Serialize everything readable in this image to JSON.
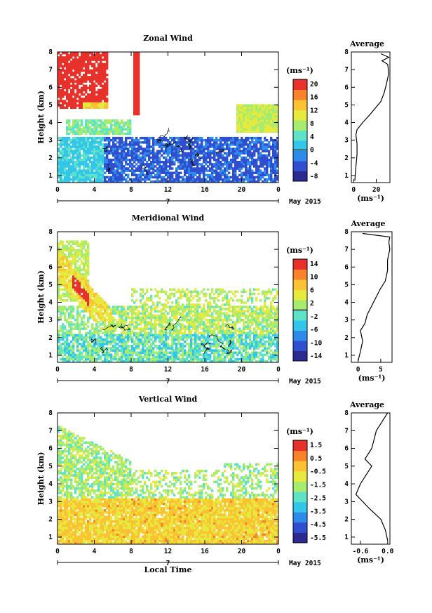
{
  "figure": {
    "ylabel": "Height (km)",
    "date_label": "May 2015",
    "local_time_label": "Local Time",
    "day_label": "7",
    "avg_title": "Average",
    "unit_label": "(ms⁻¹)"
  },
  "chart_data": [
    {
      "type": "heatmap",
      "title": "Zonal Wind",
      "xlabel": "",
      "ylabel": "Height (km)",
      "x_ticks": [
        "0",
        "4",
        "8",
        "12",
        "16",
        "20",
        "0"
      ],
      "xlim": [
        0,
        24
      ],
      "y_ticks": [
        "1",
        "2",
        "3",
        "4",
        "5",
        "6",
        "7",
        "8"
      ],
      "ylim": [
        0.6,
        8
      ],
      "colorbar": {
        "unit": "(ms⁻¹)",
        "ticks": [
          "20",
          "16",
          "12",
          "8",
          "4",
          "0",
          "-4",
          "-8"
        ],
        "range": [
          -10,
          22
        ]
      },
      "zero_contour": true
    },
    {
      "type": "heatmap",
      "title": "Meridional Wind",
      "xlabel": "",
      "ylabel": "Height (km)",
      "x_ticks": [
        "0",
        "4",
        "8",
        "12",
        "16",
        "20",
        "0"
      ],
      "xlim": [
        0,
        24
      ],
      "y_ticks": [
        "1",
        "2",
        "3",
        "4",
        "5",
        "6",
        "7",
        "8"
      ],
      "ylim": [
        0.6,
        8
      ],
      "colorbar": {
        "unit": "(ms⁻¹)",
        "ticks": [
          "14",
          "10",
          "6",
          "2",
          "-2",
          "-6",
          "-10",
          "-14"
        ],
        "range": [
          -16,
          16
        ]
      },
      "zero_contour": true
    },
    {
      "type": "heatmap",
      "title": "Vertical Wind",
      "xlabel": "Local Time",
      "ylabel": "Height (km)",
      "x_ticks": [
        "0",
        "4",
        "8",
        "12",
        "16",
        "20",
        "0"
      ],
      "xlim": [
        0,
        24
      ],
      "y_ticks": [
        "1",
        "2",
        "3",
        "4",
        "5",
        "6",
        "7",
        "8"
      ],
      "ylim": [
        0.6,
        8
      ],
      "colorbar": {
        "unit": "(ms⁻¹)",
        "ticks": [
          "1.5",
          "0.5",
          "-0.5",
          "-1.5",
          "-2.5",
          "-3.5",
          "-4.5",
          "-5.5"
        ],
        "range": [
          -6,
          2
        ]
      },
      "zero_contour": false
    },
    {
      "type": "line",
      "title": "Average",
      "xlabel": "(ms⁻¹)",
      "x_ticks": [
        "0",
        "20"
      ],
      "xlim": [
        -2,
        32
      ],
      "y_ticks": [
        "1",
        "2",
        "3",
        "4",
        "5",
        "6",
        "7",
        "8"
      ],
      "ylim": [
        0.6,
        8
      ],
      "series": [
        {
          "x": [
            1,
            2,
            3,
            3,
            2,
            3,
            8,
            15,
            24,
            27,
            29,
            31,
            30,
            25,
            31,
            24
          ],
          "y": [
            0.7,
            1.5,
            2.2,
            2.8,
            3.3,
            3.6,
            4.0,
            4.5,
            5.2,
            5.7,
            6.2,
            6.8,
            7.3,
            7.5,
            7.7,
            7.9
          ]
        }
      ]
    },
    {
      "type": "line",
      "title": "Average",
      "xlabel": "(ms⁻¹)",
      "x_ticks": [
        "0",
        "5"
      ],
      "xlim": [
        -1.5,
        7.5
      ],
      "y_ticks": [
        "1",
        "2",
        "3",
        "4",
        "5",
        "6",
        "7",
        "8"
      ],
      "ylim": [
        0.6,
        8
      ],
      "series": [
        {
          "x": [
            0,
            0.5,
            1,
            0.5,
            1.5,
            2,
            3,
            4,
            5,
            6,
            6.5,
            6.5,
            7,
            6.8,
            7,
            1
          ],
          "y": [
            0.7,
            1.2,
            1.8,
            2.4,
            2.8,
            3.3,
            3.8,
            4.3,
            4.8,
            5.2,
            5.8,
            6.4,
            7.0,
            7.4,
            7.7,
            7.9
          ]
        }
      ]
    },
    {
      "type": "line",
      "title": "Average",
      "xlabel": "(ms⁻¹)",
      "x_ticks": [
        "-0.6",
        "0.0"
      ],
      "xlim": [
        -0.8,
        0.05
      ],
      "y_ticks": [
        "1",
        "2",
        "3",
        "4",
        "5",
        "6",
        "7",
        "8"
      ],
      "ylim": [
        0.6,
        8
      ],
      "series": [
        {
          "x": [
            0,
            -0.05,
            -0.15,
            -0.4,
            -0.7,
            -0.6,
            -0.45,
            -0.35,
            -0.5,
            -0.35,
            -0.3,
            -0.25,
            -0.15,
            -0.05,
            0
          ],
          "y": [
            0.8,
            1.4,
            2.0,
            2.6,
            3.4,
            4.0,
            4.6,
            5.0,
            5.4,
            6.0,
            6.5,
            7.0,
            7.4,
            7.8,
            8.0
          ]
        }
      ]
    }
  ]
}
